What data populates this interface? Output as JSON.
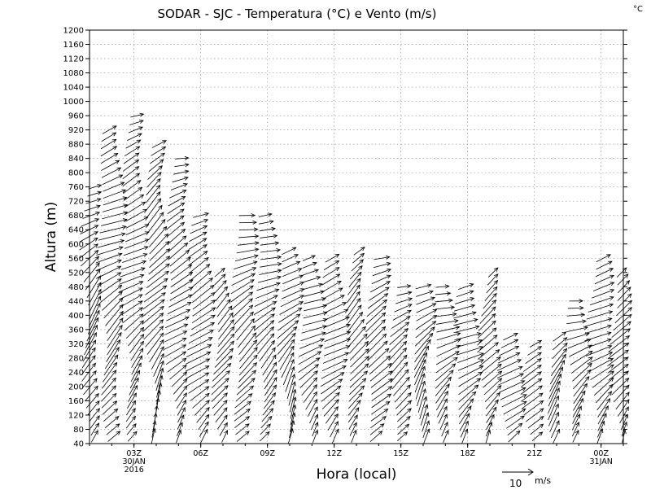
{
  "chart_data": {
    "type": "wind_barb_profile",
    "title": "SODAR - SJC - Temperatura (°C) e Vento (m/s)",
    "units_label": "°C",
    "xlabel": "Hora (local)",
    "ylabel": "Altura (m)",
    "yticks": [
      40,
      80,
      120,
      160,
      200,
      240,
      280,
      320,
      360,
      400,
      440,
      480,
      520,
      560,
      600,
      640,
      680,
      720,
      760,
      800,
      840,
      880,
      920,
      960,
      1000,
      1040,
      1080,
      1120,
      1160,
      1200
    ],
    "ylim": [
      40,
      1200
    ],
    "xlim_hours": [
      0,
      24
    ],
    "xticks": [
      {
        "hour": 2,
        "line1": "03Z",
        "line2": "30JAN",
        "line3": "2016"
      },
      {
        "hour": 5,
        "line1": "06Z",
        "line2": "",
        "line3": ""
      },
      {
        "hour": 8,
        "line1": "09Z",
        "line2": "",
        "line3": ""
      },
      {
        "hour": 11,
        "line1": "12Z",
        "line2": "",
        "line3": ""
      },
      {
        "hour": 14,
        "line1": "15Z",
        "line2": "",
        "line3": ""
      },
      {
        "hour": 17,
        "line1": "18Z",
        "line2": "",
        "line3": ""
      },
      {
        "hour": 20,
        "line1": "21Z",
        "line2": "",
        "line3": ""
      },
      {
        "hour": 23,
        "line1": "00Z",
        "line2": "31JAN",
        "line3": ""
      }
    ],
    "grid": true,
    "legend": {
      "speed": 10,
      "value_label": "10",
      "unit_label": "m/s"
    },
    "series": [
      {
        "hour": 0.1,
        "top": 760
      },
      {
        "hour": 1.0,
        "top": 920
      },
      {
        "hour": 2.0,
        "top": 960
      },
      {
        "hour": 3.0,
        "top": 880
      },
      {
        "hour": 4.0,
        "top": 840
      },
      {
        "hour": 5.0,
        "top": 680
      },
      {
        "hour": 6.0,
        "top": 520
      },
      {
        "hour": 7.0,
        "top": 680
      },
      {
        "hour": 8.0,
        "top": 680
      },
      {
        "hour": 9.0,
        "top": 580
      },
      {
        "hour": 10.0,
        "top": 560
      },
      {
        "hour": 11.0,
        "top": 560
      },
      {
        "hour": 12.0,
        "top": 580
      },
      {
        "hour": 13.0,
        "top": 560
      },
      {
        "hour": 14.0,
        "top": 480
      },
      {
        "hour": 15.0,
        "top": 480
      },
      {
        "hour": 16.0,
        "top": 480
      },
      {
        "hour": 17.0,
        "top": 480
      },
      {
        "hour": 18.0,
        "top": 520
      },
      {
        "hour": 19.0,
        "top": 340
      },
      {
        "hour": 20.0,
        "top": 320
      },
      {
        "hour": 21.0,
        "top": 340
      },
      {
        "hour": 22.0,
        "top": 440
      },
      {
        "hour": 23.0,
        "top": 560
      },
      {
        "hour": 23.9,
        "top": 520
      }
    ]
  }
}
